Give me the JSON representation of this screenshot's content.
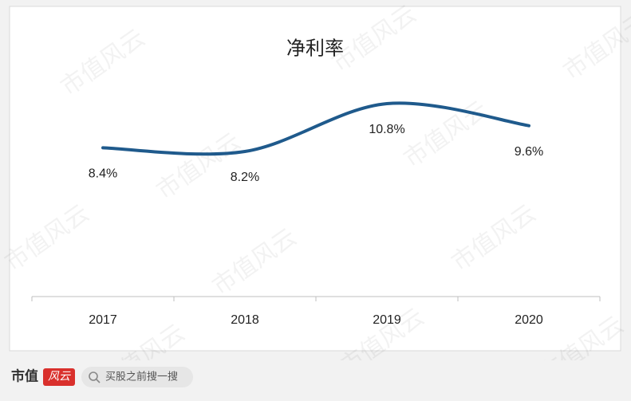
{
  "chart_data": {
    "type": "line",
    "title": "净利率",
    "categories": [
      "2017",
      "2018",
      "2019",
      "2020"
    ],
    "values": [
      8.4,
      8.2,
      10.8,
      9.6
    ],
    "value_labels": [
      "8.4%",
      "8.2%",
      "10.8%",
      "9.6%"
    ],
    "color": "#1f5a8c",
    "smooth": true,
    "grid": false
  },
  "watermark": "市值风云",
  "footer": {
    "brand": "市值",
    "brand_mark": "风云",
    "search": "买股之前搜一搜"
  }
}
